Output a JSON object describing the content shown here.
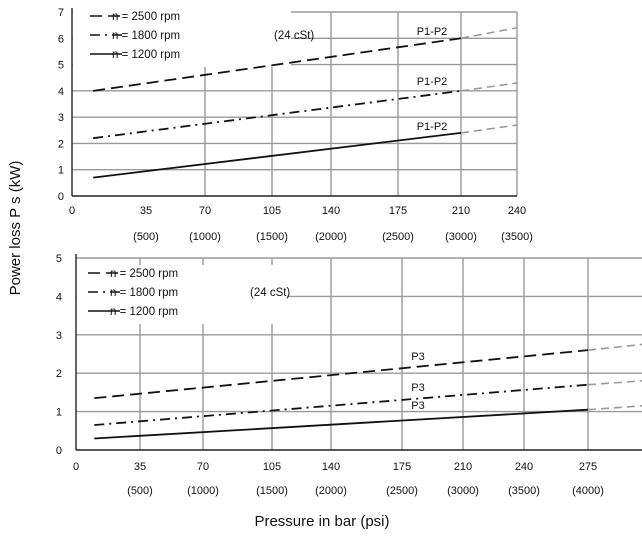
{
  "ylabel": "Power loss P s (kW)",
  "xlabel": "Pressure in bar (psi)",
  "chart_data": [
    {
      "type": "line",
      "x_ticks": [
        "0",
        "35",
        "70",
        "105",
        "140",
        "175",
        "210",
        "240"
      ],
      "x_sub_ticks": [
        "(500)",
        "(1000)",
        "(1500)",
        "(2000)",
        "(2500)",
        "(3000)",
        "(3500)"
      ],
      "xlim": [
        0,
        240
      ],
      "ylim": [
        0,
        7
      ],
      "y_ticks": [
        "0",
        "1",
        "2",
        "3",
        "4",
        "5",
        "6",
        "7"
      ],
      "grid": true,
      "legend": {
        "position": "top-left",
        "note": "(24 cSt)",
        "entries": [
          "n = 2500 rpm",
          "n = 1800 rpm",
          "n = 1200 rpm"
        ]
      },
      "annotations": [
        "P1-P2",
        "P1-P2",
        "P1-P2"
      ],
      "series": [
        {
          "name": "n = 2500 rpm",
          "style": "dash",
          "x": [
            10,
            210
          ],
          "y": [
            4.0,
            6.0
          ],
          "ext_x": [
            210,
            240
          ],
          "ext_y": [
            6.0,
            6.4
          ]
        },
        {
          "name": "n = 1800 rpm",
          "style": "dashdot",
          "x": [
            10,
            210
          ],
          "y": [
            2.2,
            4.0
          ],
          "ext_x": [
            210,
            240
          ],
          "ext_y": [
            4.0,
            4.3
          ]
        },
        {
          "name": "n = 1200 rpm",
          "style": "solid",
          "x": [
            10,
            210
          ],
          "y": [
            0.7,
            2.4
          ],
          "ext_x": [
            210,
            240
          ],
          "ext_y": [
            2.4,
            2.7
          ]
        }
      ]
    },
    {
      "type": "line",
      "x_ticks": [
        "0",
        "35",
        "70",
        "105",
        "140",
        "175",
        "210",
        "240",
        "275"
      ],
      "x_sub_ticks": [
        "(500)",
        "(1000)",
        "(1500)",
        "(2000)",
        "(2500)",
        "(3000)",
        "(3500)",
        "(4000)"
      ],
      "xlim": [
        0,
        315
      ],
      "ylim": [
        0,
        5
      ],
      "y_ticks": [
        "0",
        "1",
        "2",
        "3",
        "4",
        "5"
      ],
      "grid": true,
      "legend": {
        "position": "top-left",
        "note": "(24 cSt)",
        "entries": [
          "n = 2500 rpm",
          "n = 1800 rpm",
          "n = 1200 rpm"
        ]
      },
      "annotations": [
        "P3",
        "P3",
        "P3"
      ],
      "series": [
        {
          "name": "n = 2500 rpm",
          "style": "dash",
          "x": [
            10,
            275
          ],
          "y": [
            1.35,
            2.6
          ],
          "ext_x": [
            275,
            315
          ],
          "ext_y": [
            2.6,
            2.75
          ]
        },
        {
          "name": "n = 1800 rpm",
          "style": "dashdot",
          "x": [
            10,
            275
          ],
          "y": [
            0.65,
            1.7
          ],
          "ext_x": [
            275,
            315
          ],
          "ext_y": [
            1.7,
            1.8
          ]
        },
        {
          "name": "n = 1200 rpm",
          "style": "solid",
          "x": [
            10,
            275
          ],
          "y": [
            0.3,
            1.05
          ],
          "ext_x": [
            275,
            315
          ],
          "ext_y": [
            1.05,
            1.15
          ]
        }
      ]
    }
  ]
}
